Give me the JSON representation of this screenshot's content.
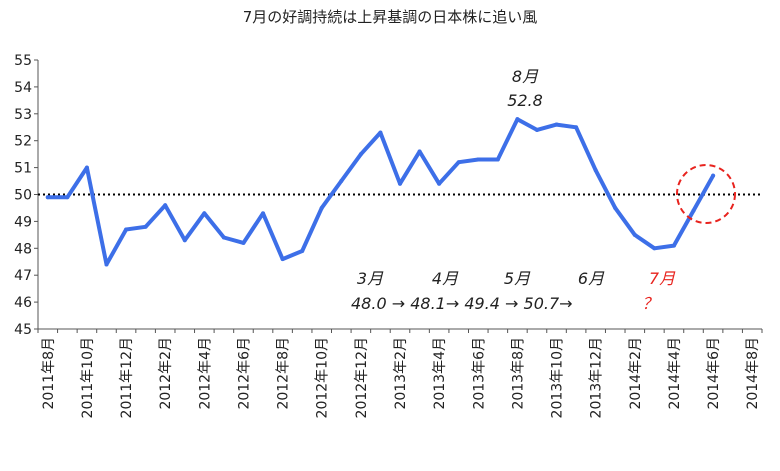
{
  "chart_data": {
    "type": "line",
    "title": "7月の好調持続は上昇基調の日本株に追い風",
    "xlabel": "",
    "ylabel": "",
    "ylim": [
      45,
      55
    ],
    "y_ticks": [
      "45",
      "46",
      "47",
      "48",
      "49",
      "50",
      "51",
      "52",
      "53",
      "54",
      "55"
    ],
    "reference_line": 50,
    "x_tick_labels": [
      "2011年8月",
      "2011年10月",
      "2011年12月",
      "2012年2月",
      "2012年4月",
      "2012年6月",
      "2012年8月",
      "2012年10月",
      "2012年12月",
      "2013年2月",
      "2013年4月",
      "2013年6月",
      "2013年8月",
      "2013年10月",
      "2013年12月",
      "2014年2月",
      "2014年4月",
      "2014年6月",
      "2014年8月"
    ],
    "x": [
      "2011年8月",
      "2011年9月",
      "2011年10月",
      "2011年11月",
      "2011年12月",
      "2012年1月",
      "2012年2月",
      "2012年3月",
      "2012年4月",
      "2012年5月",
      "2012年6月",
      "2012年7月",
      "2012年8月",
      "2012年9月",
      "2012年10月",
      "2012年11月",
      "2012年12月",
      "2013年1月",
      "2013年2月",
      "2013年3月",
      "2013年4月",
      "2013年5月",
      "2013年6月",
      "2013年7月",
      "2013年8月",
      "2013年9月",
      "2013年10月",
      "2013年11月",
      "2013年12月",
      "2014年1月",
      "2014年2月",
      "2014年3月",
      "2014年4月",
      "2014年5月",
      "2014年6月"
    ],
    "series": [
      {
        "values": [
          49.9,
          49.9,
          51.0,
          47.4,
          48.7,
          48.8,
          49.6,
          48.3,
          49.3,
          48.4,
          48.2,
          49.3,
          47.6,
          47.9,
          49.5,
          50.5,
          51.5,
          52.3,
          50.4,
          51.6,
          50.4,
          51.2,
          51.3,
          51.3,
          52.8,
          52.4,
          52.6,
          52.5,
          50.9,
          49.5,
          48.5,
          48.0,
          48.1,
          49.4,
          50.7
        ]
      }
    ],
    "colors": {
      "line": "#3d6fe8",
      "reference": "#000000",
      "highlight": "#e8231e",
      "axis": "#555555"
    },
    "annotations": {
      "peak_month": "8月",
      "peak_value": "52.8",
      "months": [
        "3月",
        "4月",
        "5月",
        "6月"
      ],
      "values_sequence": "48.0 → 48.1→ 49.4 → 50.7→",
      "next_month": "7月",
      "next_value": "？"
    }
  }
}
